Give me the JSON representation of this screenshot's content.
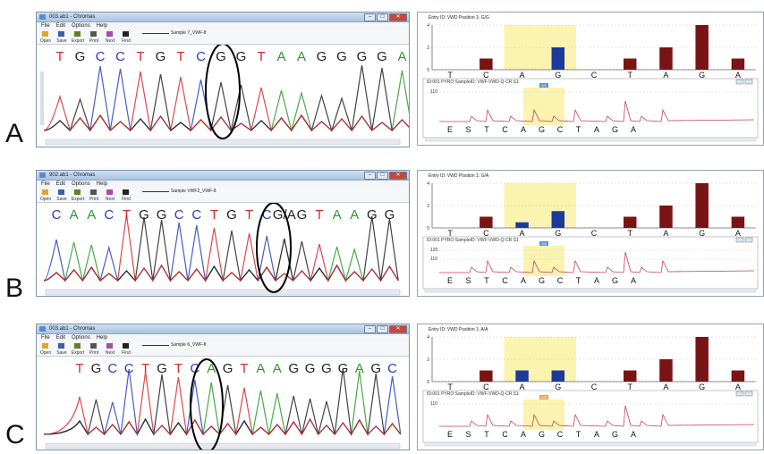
{
  "row_labels": [
    "A",
    "B",
    "C"
  ],
  "chromas": {
    "title_a": "003.ab1 - Chromas",
    "title_b": "902.ab1 - Chromas",
    "title_c": "003.ab1 - Chromas",
    "menu": [
      "File",
      "Edit",
      "Options",
      "Help"
    ],
    "toolbar": [
      "Open",
      "Save",
      "Export",
      "Print",
      "Next",
      "Find"
    ],
    "sample_a": "Sample 7_VWF-8",
    "sample_b": "Sample VWF2_VWF-8",
    "sample_c": "Sample 6_VWF-8",
    "bases_a": [
      "T",
      "G",
      "C",
      "C",
      "T",
      "G",
      "T",
      "C",
      "G",
      "G",
      "T",
      "A",
      "A",
      "G",
      "G",
      "G",
      "G",
      "A"
    ],
    "bases_b": [
      "C",
      "A",
      "A",
      "C",
      "T",
      "G",
      "G",
      "C",
      "C",
      "T",
      "G",
      "T",
      "C",
      "G/A",
      "G",
      "T",
      "A",
      "A",
      "G",
      "G"
    ],
    "bases_c": [
      "T",
      "G",
      "C",
      "C",
      "T",
      "G",
      "T",
      "C",
      "A",
      "G",
      "T",
      "A",
      "A",
      "G",
      "G",
      "G",
      "G",
      "A",
      "G",
      "C"
    ],
    "window_buttons": [
      "–",
      "□",
      "✕"
    ]
  },
  "pyro": {
    "entry_a": "Entry ID: VWD Position 1: G/G",
    "entry_b": "Entry ID: VWD Position 1: G/A",
    "entry_c": "Entry ID: VWD Position 1: A/A",
    "hist_bases": [
      "T",
      "C",
      "A",
      "G",
      "C",
      "T",
      "A",
      "G",
      "A"
    ],
    "hist_yticks": [
      "4",
      "2",
      "0"
    ],
    "pyro_bases": [
      "E",
      "S",
      "T",
      "C",
      "A",
      "G",
      "C",
      "T",
      "A",
      "G",
      "A"
    ],
    "genotype_a": "G/G",
    "genotype_b": "G/A",
    "genotype_c": "A/A",
    "yval_a": "110",
    "yval_b_top": "120",
    "yval_b": "110",
    "yval_c": "110",
    "trace_caption": "ID:001 PYRO SampleID: VWF-VWD-Q-CR S1",
    "colors": {
      "bar": "#7a1414",
      "bar_variant": "#1c3a9a",
      "highlight": "#fbf3b0",
      "trace": "#c0405a"
    }
  },
  "chart_data": [
    {
      "type": "bar",
      "title": "Entry ID: VWD Position 1: G/G",
      "categories": [
        "T",
        "C",
        "A",
        "G",
        "C",
        "T",
        "A",
        "G",
        "A"
      ],
      "series": [
        {
          "values": [
            0,
            1,
            0,
            2,
            0,
            1,
            2,
            4,
            1
          ]
        }
      ],
      "ylim": [
        0,
        4
      ]
    },
    {
      "type": "bar",
      "title": "Entry ID: VWD Position 1: G/A",
      "categories": [
        "T",
        "C",
        "A",
        "G",
        "C",
        "T",
        "A",
        "G",
        "A"
      ],
      "series": [
        {
          "values": [
            0,
            1,
            0.5,
            1.5,
            0,
            1,
            2,
            4,
            1
          ]
        }
      ],
      "ylim": [
        0,
        4
      ]
    },
    {
      "type": "bar",
      "title": "Entry ID: VWD Position 1: A/A",
      "categories": [
        "T",
        "C",
        "A",
        "G",
        "C",
        "T",
        "A",
        "G",
        "A"
      ],
      "series": [
        {
          "values": [
            0,
            1,
            1,
            1,
            0,
            1,
            2,
            4,
            1
          ]
        }
      ],
      "ylim": [
        0,
        4
      ]
    }
  ]
}
